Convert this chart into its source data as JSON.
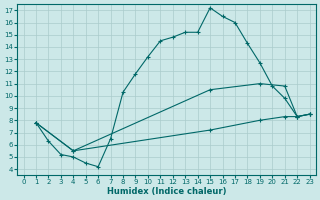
{
  "xlabel": "Humidex (Indice chaleur)",
  "ylabel": "",
  "bg_color": "#cce8e8",
  "line_color": "#006868",
  "grid_color": "#aacccc",
  "xlim": [
    -0.5,
    23.5
  ],
  "ylim": [
    3.5,
    17.5
  ],
  "xticks": [
    0,
    1,
    2,
    3,
    4,
    5,
    6,
    7,
    8,
    9,
    10,
    11,
    12,
    13,
    14,
    15,
    16,
    17,
    18,
    19,
    20,
    21,
    22,
    23
  ],
  "yticks": [
    4,
    5,
    6,
    7,
    8,
    9,
    10,
    11,
    12,
    13,
    14,
    15,
    16,
    17
  ],
  "line1": {
    "x": [
      1,
      2,
      3,
      4,
      5,
      6,
      7,
      8,
      9,
      10,
      11,
      12,
      13,
      14,
      15,
      16,
      17,
      18,
      19,
      20,
      21,
      22,
      23
    ],
    "y": [
      7.8,
      6.3,
      5.2,
      5.0,
      4.5,
      4.2,
      6.5,
      10.3,
      11.8,
      13.2,
      14.5,
      14.8,
      15.2,
      15.2,
      17.2,
      16.5,
      16.0,
      14.3,
      12.7,
      10.8,
      9.8,
      8.3,
      8.5
    ]
  },
  "line2": {
    "x": [
      1,
      4,
      15,
      19,
      21,
      22,
      23
    ],
    "y": [
      7.8,
      5.5,
      10.5,
      11.0,
      10.8,
      8.3,
      8.5
    ]
  },
  "line3": {
    "x": [
      1,
      4,
      15,
      19,
      21,
      22,
      23
    ],
    "y": [
      7.8,
      5.5,
      7.2,
      8.0,
      8.3,
      8.3,
      8.5
    ]
  }
}
